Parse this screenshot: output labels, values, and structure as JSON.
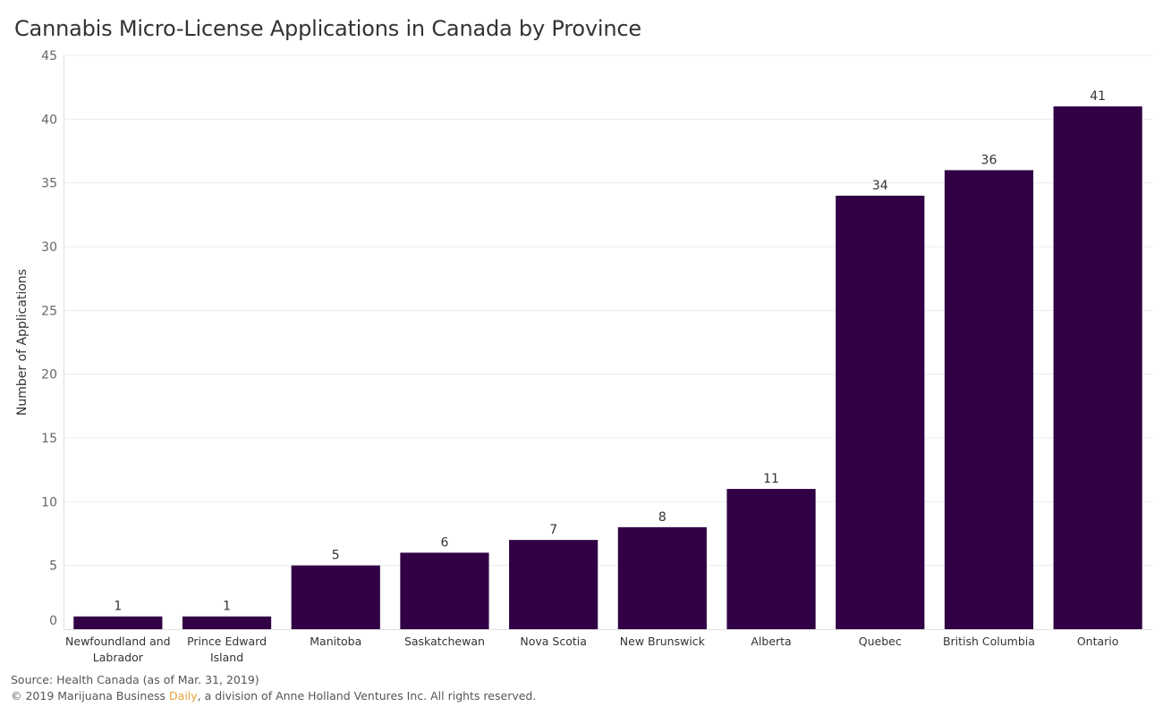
{
  "chart_data": {
    "type": "bar",
    "title": "Cannabis Micro-License Applications in Canada by Province",
    "ylabel": "Number of Applications",
    "xlabel": "",
    "categories": [
      [
        "Newfoundland and",
        "Labrador"
      ],
      [
        "Prince Edward",
        "Island"
      ],
      [
        "Manitoba"
      ],
      [
        "Saskatchewan"
      ],
      [
        "Nova Scotia"
      ],
      [
        "New Brunswick"
      ],
      [
        "Alberta"
      ],
      [
        "Quebec"
      ],
      [
        "British Columbia"
      ],
      [
        "Ontario"
      ]
    ],
    "values": [
      1,
      1,
      5,
      6,
      7,
      8,
      11,
      34,
      36,
      41
    ],
    "ylim": [
      0,
      45
    ],
    "yticks": [
      0,
      5,
      10,
      15,
      20,
      25,
      30,
      35,
      40,
      45
    ],
    "grid": true,
    "bar_color": "#310045"
  },
  "footer": {
    "source": "Source: Health Canada (as of Mar. 31, 2019)",
    "copyright_prefix": "© 2019 Marijuana Business ",
    "copyright_brand": "Daily",
    "copyright_suffix": ", a division of Anne Holland Ventures Inc. All rights reserved.",
    "brand_color": "#e8a33d"
  }
}
